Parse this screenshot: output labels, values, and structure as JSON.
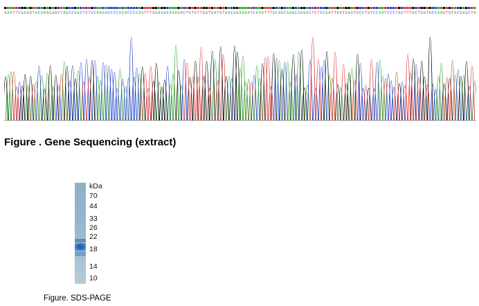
{
  "figures": {
    "gene_sequencing": {
      "caption": "Figure . Gene Sequencing (extract)",
      "read_sequence": "GAATTCGGAGTACAGAGAGCTAGCCGACTCTGCAACACCCCACACCCCAGTTTGGAGGCAAAGACTGTGTTGGTGATGTGACGGAAAATCAAGTTTGCAGCAAGCAGGACTCTCCGATTGATGGATGCCTGTCCAATCCCTGCTTTGCTGGTGCCAAGTGTACGAGCTA",
      "trace_colors": {
        "A": "#2ca02c",
        "C": "#1f3fd1",
        "G": "#000000",
        "T": "#e03030"
      }
    },
    "sds_page": {
      "caption": "Figure. SDS-PAGE",
      "unit": "kDa",
      "markers": [
        "70",
        "44",
        "33",
        "26",
        "22",
        "18",
        "14",
        "10"
      ],
      "band_color": "#2d6fb8"
    }
  }
}
